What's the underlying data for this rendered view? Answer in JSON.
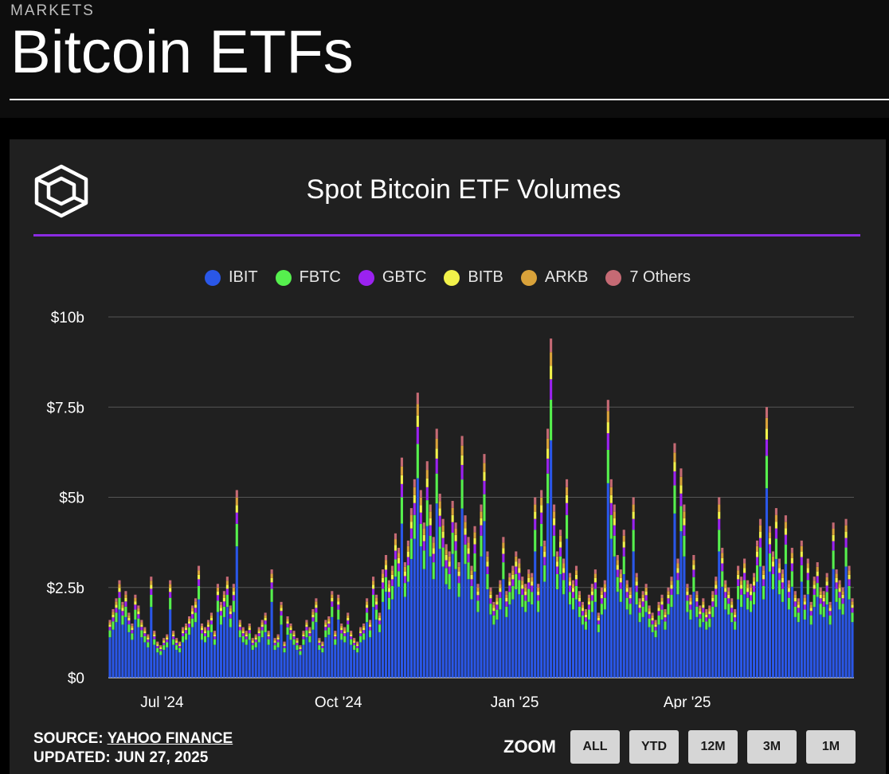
{
  "header": {
    "eyebrow": "MARKETS",
    "title": "Bitcoin ETFs"
  },
  "chart_data": {
    "type": "bar",
    "stacked": true,
    "title": "Spot Bitcoin ETF Volumes",
    "xlabel": "",
    "ylabel": "",
    "ylim": [
      0,
      10
    ],
    "y_ticks": [
      0,
      2.5,
      5,
      7.5,
      10
    ],
    "y_tick_labels": [
      "$0",
      "$2.5b",
      "$5b",
      "$7.5b",
      "$10b"
    ],
    "x_tick_labels": [
      "Jul '24",
      "Oct '24",
      "Jan '25",
      "Apr '25"
    ],
    "grid": true,
    "legend_position": "top",
    "x_range": [
      "2024-06-03",
      "2025-06-27"
    ],
    "x_ticks": [
      "2024-07-01",
      "2024-10-01",
      "2025-01-01",
      "2025-04-01"
    ],
    "series_order": [
      "IBIT",
      "FBTC",
      "GBTC",
      "BITB",
      "ARKB",
      "7 Others"
    ],
    "series": [
      {
        "name": "IBIT",
        "color": "#2a57e8"
      },
      {
        "name": "FBTC",
        "color": "#56f04e"
      },
      {
        "name": "GBTC",
        "color": "#9b22f0"
      },
      {
        "name": "BITB",
        "color": "#f2f24a"
      },
      {
        "name": "ARKB",
        "color": "#d9a23a"
      },
      {
        "name": "7 Others",
        "color": "#c56a74"
      }
    ],
    "totals": [
      1.6,
      1.9,
      2.2,
      2.7,
      2.1,
      2.4,
      1.8,
      1.5,
      2.3,
      2.0,
      1.6,
      1.4,
      1.2,
      2.8,
      1.3,
      1.0,
      0.9,
      1.1,
      1.2,
      2.7,
      1.3,
      1.1,
      1.0,
      1.4,
      1.5,
      1.7,
      2.0,
      2.2,
      3.1,
      1.5,
      1.4,
      1.6,
      1.8,
      1.3,
      2.6,
      2.1,
      2.4,
      2.8,
      2.0,
      2.6,
      5.2,
      1.6,
      1.4,
      1.3,
      1.5,
      1.1,
      1.2,
      1.4,
      1.6,
      1.8,
      1.3,
      3.0,
      1.1,
      1.2,
      2.1,
      1.0,
      1.7,
      1.5,
      1.3,
      1.1,
      0.9,
      1.3,
      1.6,
      1.4,
      1.9,
      2.2,
      1.1,
      1.0,
      1.6,
      1.7,
      2.4,
      1.3,
      2.3,
      1.5,
      1.4,
      1.8,
      1.3,
      1.1,
      1.0,
      1.4,
      1.5,
      2.2,
      1.6,
      2.8,
      2.3,
      1.8,
      3.0,
      3.4,
      2.7,
      3.1,
      4.0,
      3.6,
      6.1,
      3.2,
      3.8,
      4.7,
      5.5,
      7.9,
      5.2,
      4.3,
      6.0,
      4.8,
      3.9,
      6.9,
      5.1,
      4.4,
      3.7,
      3.5,
      4.9,
      4.3,
      3.2,
      6.7,
      4.5,
      3.9,
      3.1,
      4.2,
      2.6,
      4.8,
      6.2,
      3.5,
      2.5,
      2.1,
      2.3,
      2.7,
      3.9,
      2.4,
      2.9,
      3.1,
      3.5,
      3.3,
      2.8,
      2.6,
      3.0,
      2.9,
      5.0,
      2.6,
      5.2,
      3.8,
      6.9,
      9.4,
      4.8,
      3.5,
      4.1,
      3.3,
      5.5,
      2.9,
      2.7,
      3.1,
      2.4,
      2.1,
      1.9,
      2.3,
      2.6,
      3.0,
      1.8,
      2.5,
      2.7,
      7.7,
      5.5,
      4.8,
      3.4,
      3.0,
      4.1,
      2.7,
      2.5,
      5.0,
      2.9,
      2.2,
      2.4,
      2.6,
      2.0,
      1.8,
      1.6,
      2.1,
      2.3,
      1.9,
      2.5,
      2.8,
      6.5,
      3.3,
      5.8,
      4.8,
      2.6,
      2.3,
      3.4,
      2.4,
      2.0,
      2.2,
      1.9,
      2.0,
      2.4,
      2.8,
      5.0,
      3.6,
      2.7,
      2.5,
      2.2,
      1.9,
      3.1,
      2.8,
      3.3,
      2.7,
      2.6,
      2.9,
      3.8,
      4.4,
      3.1,
      7.5,
      4.2,
      3.5,
      4.7,
      3.3,
      3.0,
      4.5,
      2.7,
      3.6,
      2.4,
      2.2,
      3.8,
      2.3,
      3.3,
      2.1,
      2.8,
      3.2,
      2.5,
      2.4,
      2.9,
      2.1,
      4.3,
      3.0,
      2.7,
      2.5,
      4.4,
      3.1,
      2.2
    ]
  },
  "footer": {
    "source_prefix": "SOURCE:",
    "source_name": "YAHOO FINANCE",
    "updated_prefix": "UPDATED:",
    "updated_date": "JUN 27, 2025",
    "zoom_label": "ZOOM",
    "zoom_buttons": [
      "ALL",
      "YTD",
      "12M",
      "3M",
      "1M"
    ]
  }
}
